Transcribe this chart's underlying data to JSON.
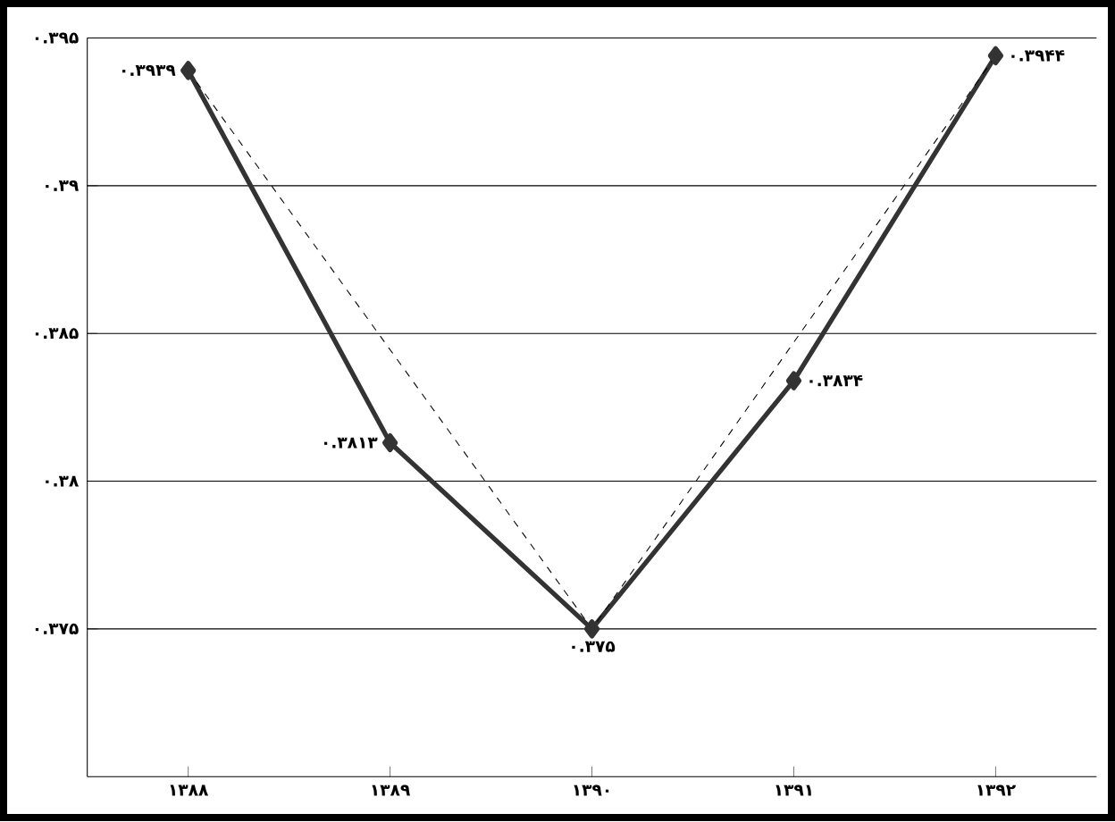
{
  "chart_data": {
    "type": "line",
    "categories": [
      "۱۳۸۸",
      "۱۳۸۹",
      "۱۳۹۰",
      "۱۳۹۱",
      "۱۳۹۲"
    ],
    "series": [
      {
        "color": "#333333",
        "values": [
          0.3939,
          0.3813,
          0.375,
          0.3834,
          0.3944
        ],
        "marker": "diamond",
        "line_style": "solid",
        "value_labels": [
          "۰.۳۹۳۹",
          "۰.۳۸۱۳",
          "۰.۳۷۵",
          "۰.۳۸۳۴",
          "۰.۳۹۴۴"
        ]
      },
      {
        "type": "line",
        "color": "#000000",
        "values": [
          0.3939,
          null,
          0.375,
          null,
          0.3944
        ],
        "marker": "none",
        "line_style": "dashed"
      }
    ],
    "ylim": [
      0.37,
      0.395
    ],
    "yticks": [
      {
        "value": 0.375,
        "label": "۰.۳۷۵"
      },
      {
        "value": 0.38,
        "label": "۰.۳۸"
      },
      {
        "value": 0.385,
        "label": "۰.۳۸۵"
      },
      {
        "value": 0.39,
        "label": "۰.۳۹"
      },
      {
        "value": 0.395,
        "label": "۰.۳۹۵"
      }
    ],
    "grid": "y"
  }
}
